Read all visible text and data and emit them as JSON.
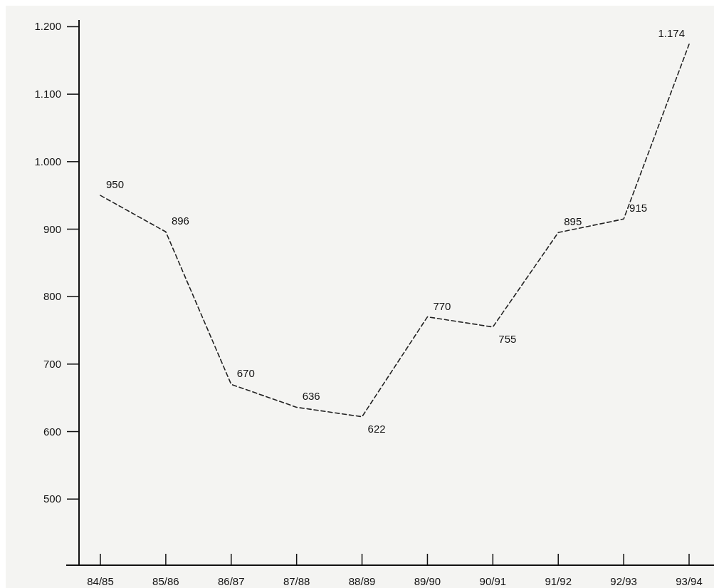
{
  "chart_data": {
    "type": "line",
    "categories": [
      "84/85",
      "85/86",
      "86/87",
      "87/88",
      "88/89",
      "89/90",
      "90/91",
      "91/92",
      "92/93",
      "93/94"
    ],
    "series": [
      {
        "color": "#222222",
        "values": [
          950,
          896,
          670,
          636,
          622,
          770,
          755,
          895,
          915,
          1174
        ],
        "value_labels": [
          "950",
          "896",
          "670",
          "636",
          "622",
          "770",
          "755",
          "895",
          "915",
          "1.174"
        ]
      }
    ],
    "ylim": [
      402,
      1210
    ],
    "yticks": [
      500,
      600,
      700,
      800,
      900,
      {
        "value": 1000,
        "label": "1.000"
      },
      {
        "value": 1100,
        "label": "1.100"
      },
      {
        "value": 1200,
        "label": "1.200"
      }
    ],
    "line_style": "dashed",
    "marker": "none",
    "grid": false
  }
}
